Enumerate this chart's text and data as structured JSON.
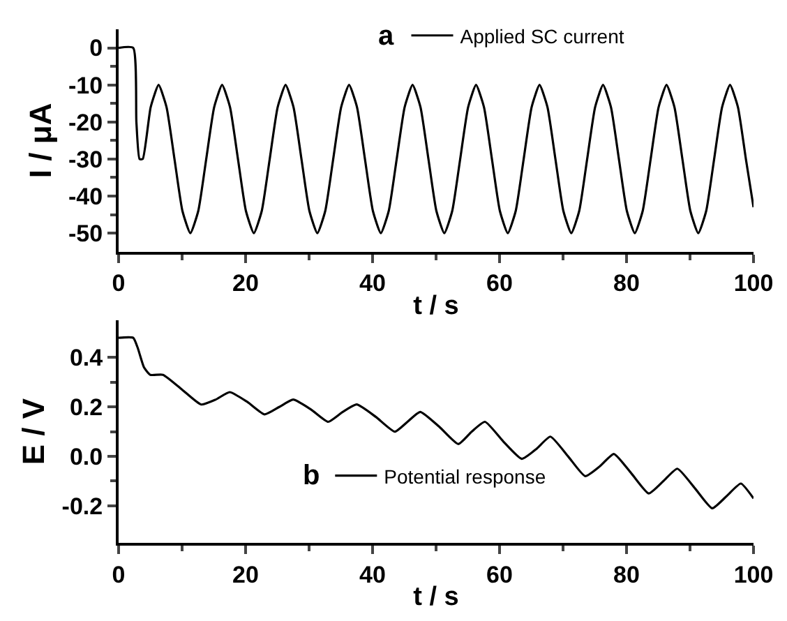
{
  "chart_data": [
    {
      "type": "line",
      "xlabel": "t / s",
      "ylabel": "I / μA",
      "xlim": [
        0,
        100
      ],
      "xticks": [
        0,
        20,
        40,
        60,
        80,
        100
      ],
      "ylim": [
        -55,
        5
      ],
      "yticks": [
        0,
        -10,
        -20,
        -30,
        -40,
        -50
      ],
      "legend": "top",
      "annotations": [
        "a"
      ],
      "series": [
        {
          "name": "Applied SC current",
          "color": "#000000",
          "x": [
            0,
            2.3,
            2.8,
            3.3,
            3.8,
            5.05,
            6.3,
            7.55,
            8.8,
            10.05,
            11.3,
            12.55,
            13.8,
            15.05,
            16.3,
            17.55,
            18.8,
            20.05,
            21.3,
            22.55,
            23.8,
            25.05,
            26.3,
            27.55,
            28.8,
            30.05,
            31.3,
            32.55,
            33.8,
            35.05,
            36.3,
            37.55,
            38.8,
            40.05,
            41.3,
            42.55,
            43.8,
            45.05,
            46.3,
            47.55,
            48.8,
            50.05,
            51.3,
            52.55,
            53.8,
            55.05,
            56.3,
            57.55,
            58.8,
            60.05,
            61.3,
            62.55,
            63.8,
            65.05,
            66.3,
            67.55,
            68.8,
            70.05,
            71.3,
            72.55,
            73.8,
            75.05,
            76.3,
            77.55,
            78.8,
            80.05,
            81.3,
            82.55,
            83.8,
            85.05,
            86.3,
            87.55,
            88.8,
            90.05,
            91.3,
            92.55,
            93.8,
            95.05,
            96.3,
            97.55,
            98.8,
            100
          ],
          "values": [
            0,
            0,
            -20,
            -30,
            -30,
            -16,
            -10,
            -16,
            -30,
            -44,
            -50,
            -44,
            -30,
            -16,
            -10,
            -16,
            -30,
            -44,
            -50,
            -44,
            -30,
            -16,
            -10,
            -16,
            -30,
            -44,
            -50,
            -44,
            -30,
            -16,
            -10,
            -16,
            -30,
            -44,
            -50,
            -44,
            -30,
            -16,
            -10,
            -16,
            -30,
            -44,
            -50,
            -44,
            -30,
            -16,
            -10,
            -16,
            -30,
            -44,
            -50,
            -44,
            -30,
            -16,
            -10,
            -16,
            -30,
            -44,
            -50,
            -44,
            -30,
            -16,
            -10,
            -16,
            -30,
            -44,
            -50,
            -44,
            -30,
            -16,
            -10,
            -16,
            -30,
            -44,
            -50,
            -44,
            -30,
            -16,
            -10,
            -16,
            -30,
            -43
          ]
        }
      ]
    },
    {
      "type": "line",
      "xlabel": "t / s",
      "ylabel": "E / V",
      "xlim": [
        0,
        100
      ],
      "xticks": [
        0,
        20,
        40,
        60,
        80,
        100
      ],
      "ylim": [
        -0.35,
        0.55
      ],
      "yticks": [
        {
          "value": 0.4,
          "label": "0.4"
        },
        {
          "value": 0.2,
          "label": "0.2"
        },
        {
          "value": 0,
          "label": "0.0"
        },
        {
          "value": -0.2,
          "label": "-0.2"
        }
      ],
      "legend": "bottom left",
      "annotations": [
        "b"
      ],
      "series": [
        {
          "name": "Potential response",
          "color": "#000000",
          "x": [
            0,
            2.3,
            3,
            4,
            5,
            7,
            10,
            13,
            15.3,
            17.5,
            20.3,
            23,
            25.3,
            27.5,
            30.3,
            33,
            35.3,
            37.5,
            40.5,
            43.5,
            45.5,
            47.5,
            50.5,
            53.5,
            55.6,
            57.7,
            60.6,
            63.5,
            65.8,
            68,
            70.8,
            73.5,
            75.8,
            78,
            80.8,
            83.5,
            85.8,
            88,
            90.8,
            93.5,
            95.8,
            98,
            100
          ],
          "values": [
            0.48,
            0.48,
            0.44,
            0.36,
            0.33,
            0.33,
            0.27,
            0.21,
            0.23,
            0.26,
            0.22,
            0.17,
            0.2,
            0.23,
            0.19,
            0.14,
            0.18,
            0.21,
            0.16,
            0.1,
            0.14,
            0.18,
            0.12,
            0.05,
            0.1,
            0.14,
            0.06,
            -0.01,
            0.03,
            0.08,
            0.0,
            -0.08,
            -0.04,
            0.01,
            -0.07,
            -0.15,
            -0.1,
            -0.05,
            -0.13,
            -0.21,
            -0.16,
            -0.11,
            -0.17
          ]
        }
      ]
    }
  ]
}
